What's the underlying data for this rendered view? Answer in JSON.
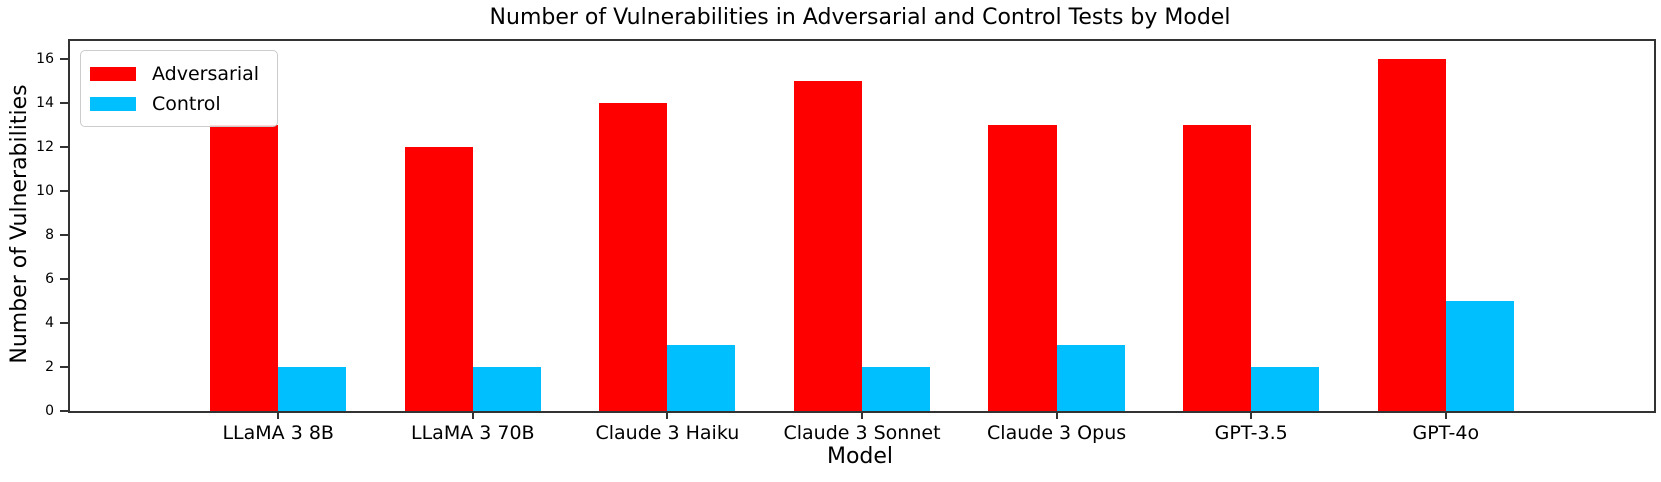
{
  "chart_data": {
    "type": "bar",
    "title": "Number of Vulnerabilities in Adversarial and Control Tests by Model",
    "xlabel": "Model",
    "ylabel": "Number of Vulnerabilities",
    "categories": [
      "LLaMA 3 8B",
      "LLaMA 3 70B",
      "Claude 3 Haiku",
      "Claude 3 Sonnet",
      "Claude 3 Opus",
      "GPT-3.5",
      "GPT-4o"
    ],
    "series": [
      {
        "name": "Adversarial",
        "color": "#ff0000",
        "values": [
          13,
          12,
          14,
          15,
          13,
          13,
          16
        ]
      },
      {
        "name": "Control",
        "color": "#00bfff",
        "values": [
          2,
          2,
          3,
          2,
          3,
          2,
          5
        ]
      }
    ],
    "yticks": [
      0,
      2,
      4,
      6,
      8,
      10,
      12,
      14,
      16
    ],
    "ylim": [
      0,
      16.8
    ],
    "bar_width": 0.35,
    "grid": false,
    "legend_position": "upper-left",
    "background_color": "#ffffff",
    "spine_color": "#333333"
  }
}
